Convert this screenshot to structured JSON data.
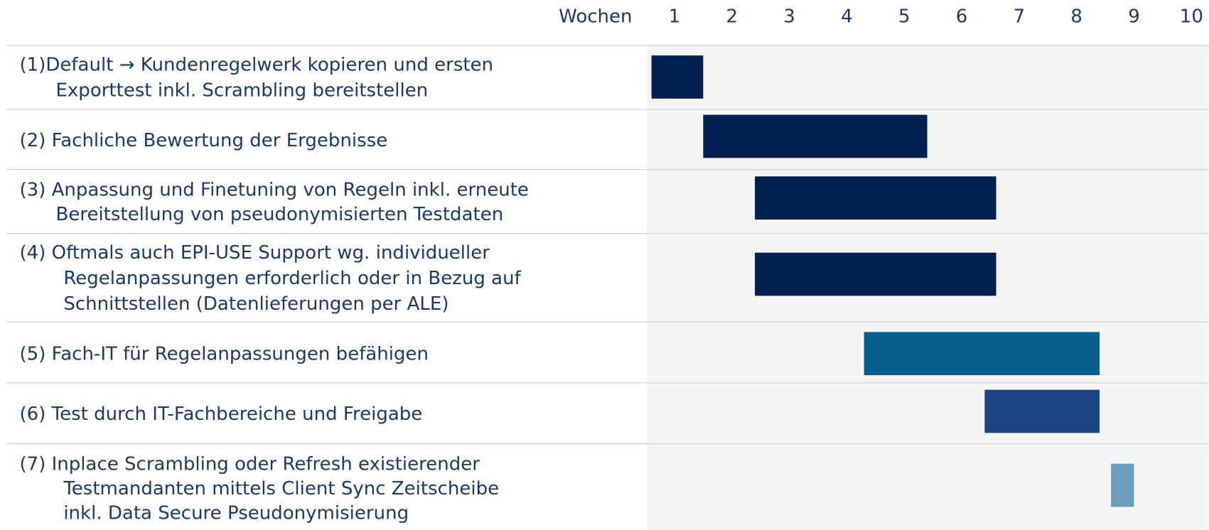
{
  "chart_data": {
    "type": "gantt",
    "axis_label": "Wochen",
    "xlim": [
      0.52,
      10.3
    ],
    "xticks": [
      1,
      2,
      3,
      4,
      5,
      6,
      7,
      8,
      9,
      10
    ],
    "tasks": [
      {
        "label": [
          "(1)Default → Kundenregelwerk kopieren und ersten",
          "Exporttest inkl. Scrambling bereitstellen"
        ],
        "start": 0.6,
        "end": 1.5,
        "color": "#002050"
      },
      {
        "label": [
          "(2) Fachliche Bewertung der Ergebnisse"
        ],
        "start": 1.5,
        "end": 5.4,
        "color": "#002050"
      },
      {
        "label": [
          "(3) Anpassung und Finetuning von Regeln inkl. erneute",
          "Bereitstellung von pseudonymisierten Testdaten"
        ],
        "start": 2.4,
        "end": 6.6,
        "color": "#002050"
      },
      {
        "label": [
          "(4) Oftmals auch EPI-USE Support wg. individueller",
          "Regelanpassungen erforderlich oder in Bezug auf",
          "Schnittstellen (Datenlieferungen per ALE)"
        ],
        "start": 2.4,
        "end": 6.6,
        "color": "#002050"
      },
      {
        "label": [
          "(5) Fach-IT für Regelanpassungen befähigen"
        ],
        "start": 4.3,
        "end": 8.4,
        "color": "#075e8a"
      },
      {
        "label": [
          "(6) Test durch IT-Fachbereiche und Freigabe"
        ],
        "start": 6.4,
        "end": 8.4,
        "color": "#1b4585"
      },
      {
        "label": [
          "(7) Inplace Scrambling oder Refresh existierender",
          "Testmandanten mittels Client Sync Zeitscheibe",
          "inkl. Data Secure Pseudonymisierung"
        ],
        "start": 8.6,
        "end": 9.0,
        "color": "#6a9dbf"
      }
    ]
  }
}
